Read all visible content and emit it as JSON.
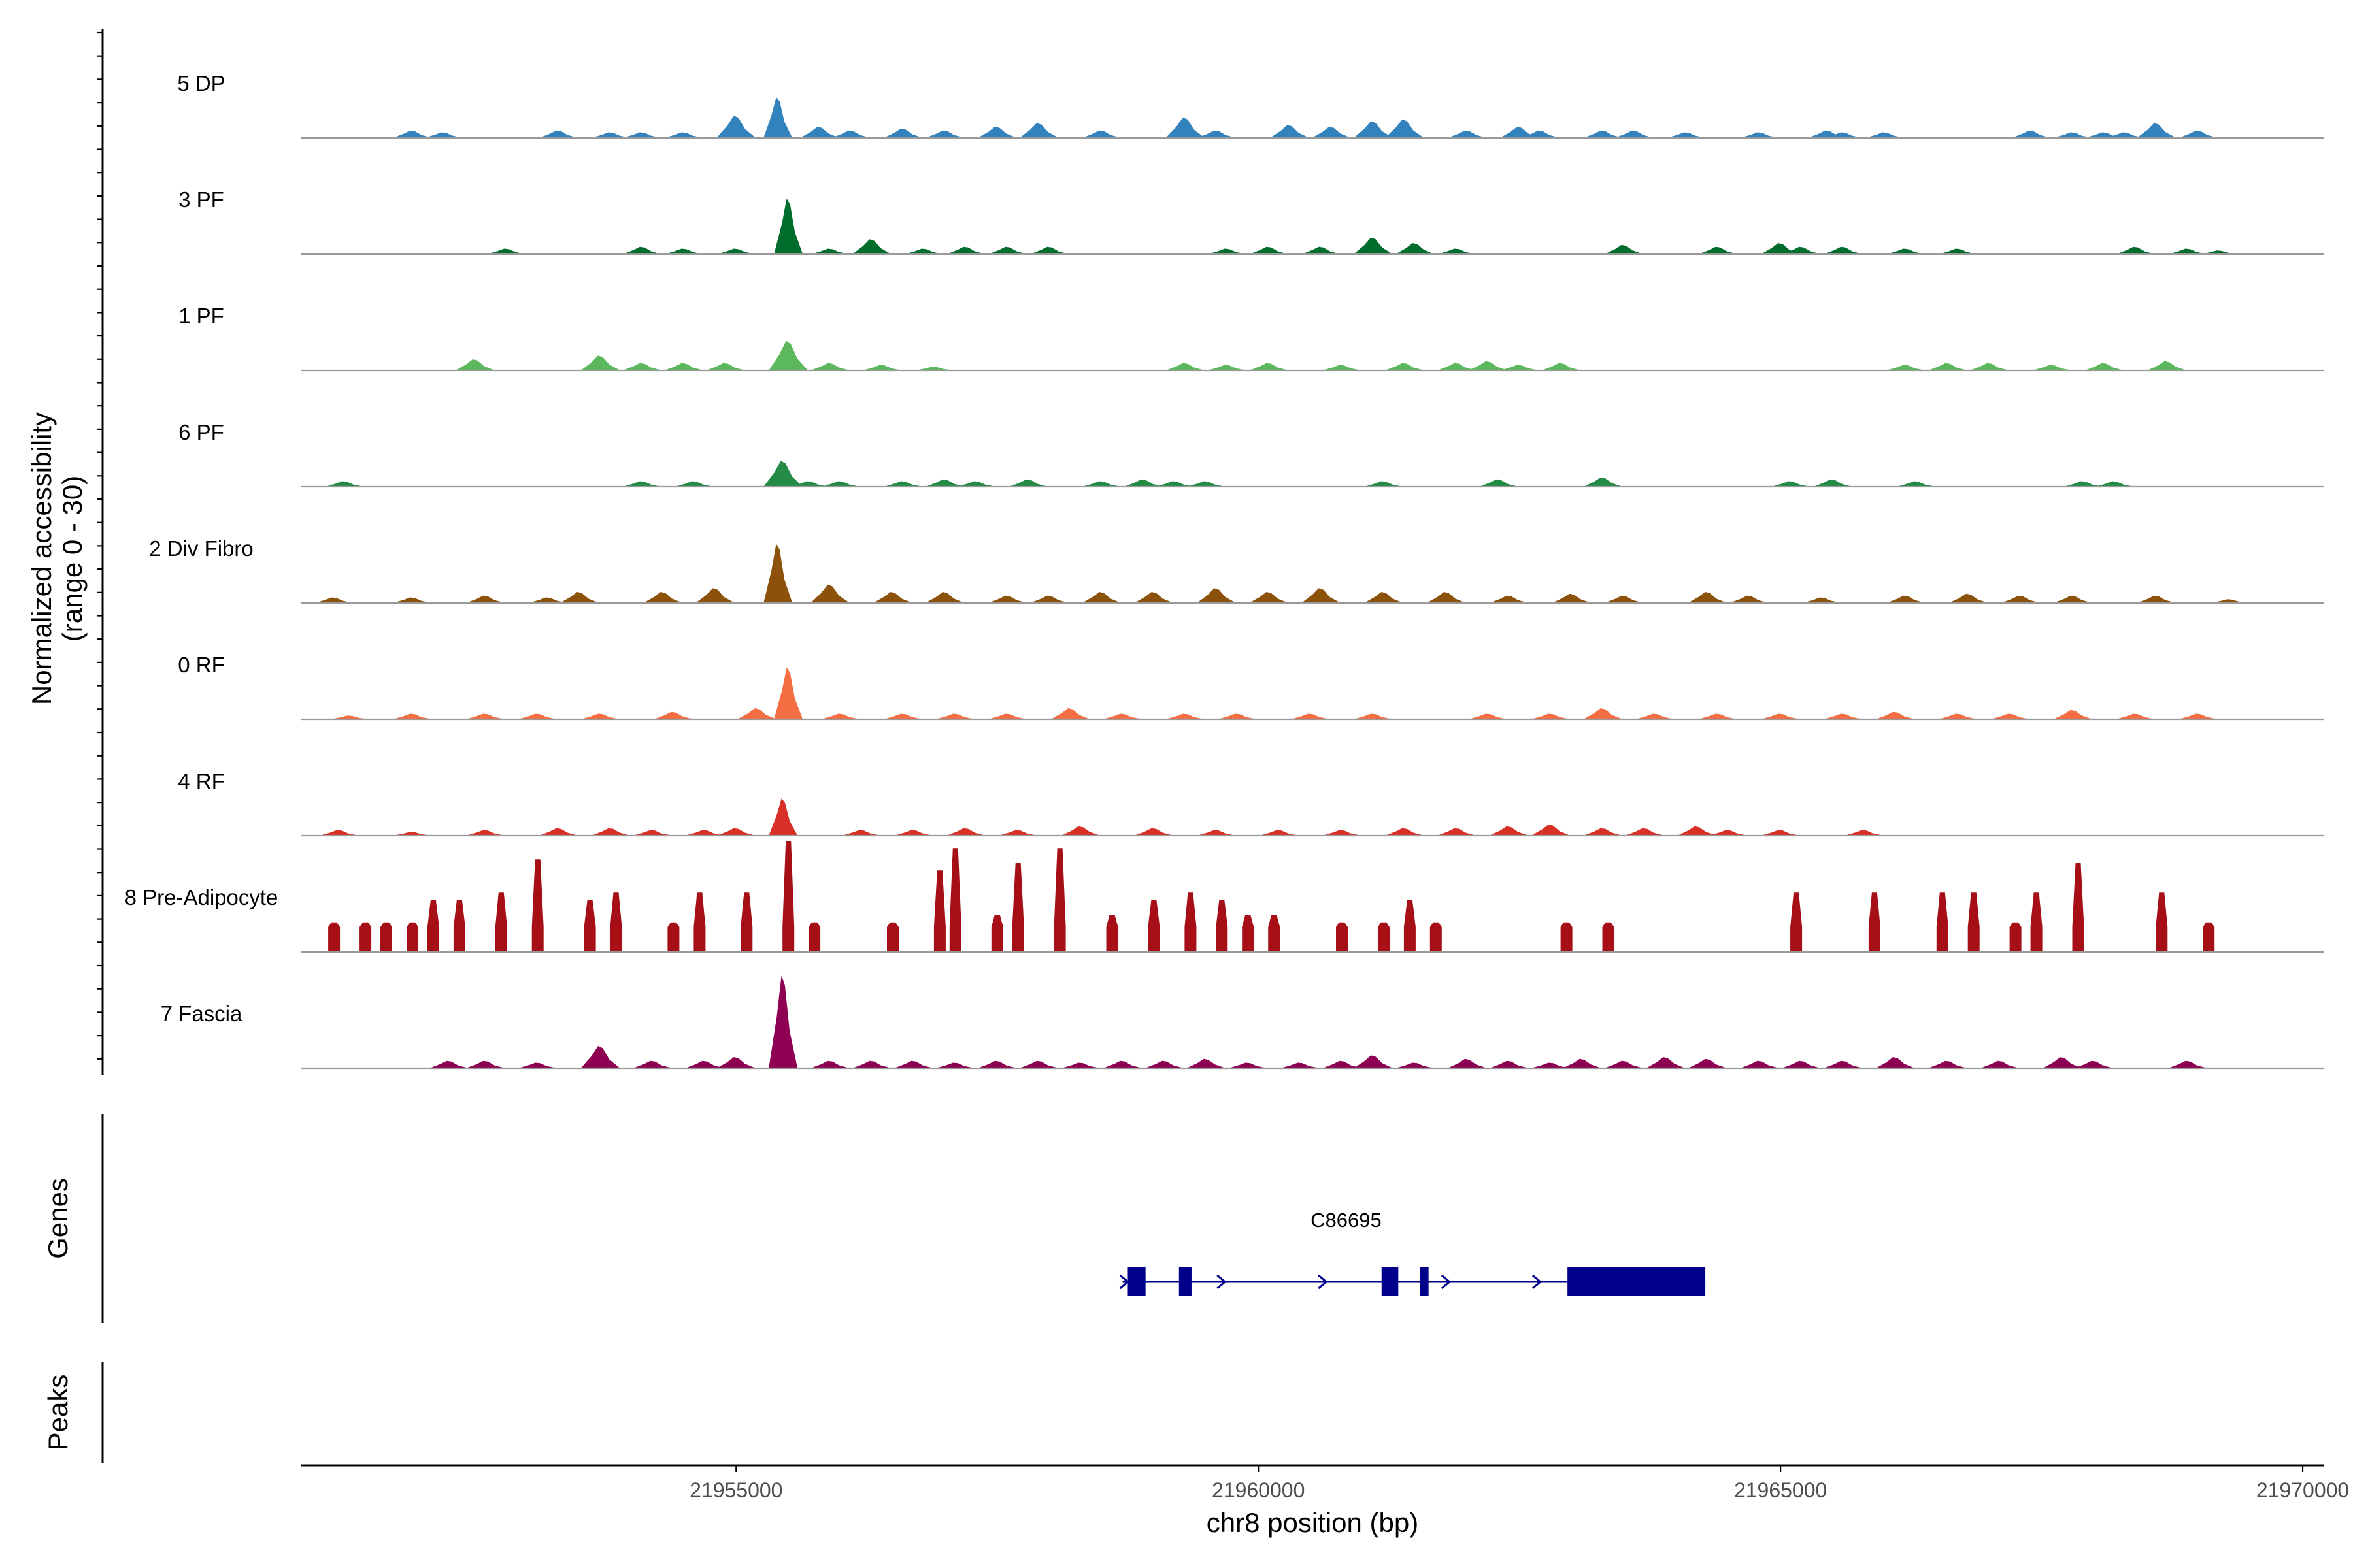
{
  "chart_data": {
    "type": "area",
    "chromosome": "chr8",
    "y_axis_title_line1": "Normalized accessibility",
    "y_axis_title_line2": "(range 0 - 30)",
    "ylim": [
      0,
      30
    ],
    "x_axis_title": "chr8 position (bp)",
    "xlim": [
      21950830,
      21970200
    ],
    "x_ticks": [
      21955000,
      21960000,
      21965000,
      21970000
    ],
    "x_tick_labels": [
      "21955000",
      "21960000",
      "21965000",
      "21970000"
    ],
    "tracks": [
      {
        "label": "5 DP",
        "color": "#3182bd",
        "max": 11,
        "peaks": [
          [
            21951900,
            2
          ],
          [
            21952200,
            1.5
          ],
          [
            21953300,
            2
          ],
          [
            21953800,
            1.5
          ],
          [
            21954100,
            1.5
          ],
          [
            21954500,
            1.5
          ],
          [
            21955000,
            6
          ],
          [
            21955400,
            11
          ],
          [
            21955800,
            3
          ],
          [
            21956100,
            2
          ],
          [
            21956600,
            2.5
          ],
          [
            21957000,
            2
          ],
          [
            21957500,
            3
          ],
          [
            21957900,
            4
          ],
          [
            21958500,
            2
          ],
          [
            21959300,
            5.5
          ],
          [
            21959600,
            2
          ],
          [
            21960300,
            3.5
          ],
          [
            21960700,
            3
          ],
          [
            21961100,
            4.5
          ],
          [
            21961400,
            5
          ],
          [
            21962000,
            2
          ],
          [
            21962500,
            3
          ],
          [
            21962700,
            2
          ],
          [
            21963300,
            2
          ],
          [
            21963600,
            2
          ],
          [
            21964100,
            1.5
          ],
          [
            21964800,
            1.5
          ],
          [
            21965450,
            2
          ],
          [
            21965600,
            1.5
          ],
          [
            21966000,
            1.5
          ],
          [
            21967400,
            2
          ],
          [
            21967800,
            1.5
          ],
          [
            21968100,
            1.5
          ],
          [
            21968300,
            1.5
          ],
          [
            21968600,
            4
          ],
          [
            21969000,
            2
          ]
        ]
      },
      {
        "label": "3 PF",
        "color": "#006d2c",
        "max": 15,
        "peaks": [
          [
            21952800,
            1.5
          ],
          [
            21954100,
            2
          ],
          [
            21954500,
            1.5
          ],
          [
            21955000,
            1.5
          ],
          [
            21955500,
            15
          ],
          [
            21955900,
            1.5
          ],
          [
            21956300,
            4
          ],
          [
            21956800,
            1.5
          ],
          [
            21957200,
            2
          ],
          [
            21957600,
            2
          ],
          [
            21958000,
            2
          ],
          [
            21959700,
            1.5
          ],
          [
            21960100,
            2
          ],
          [
            21960600,
            2
          ],
          [
            21961100,
            4.5
          ],
          [
            21961500,
            3
          ],
          [
            21961900,
            1.5
          ],
          [
            21963500,
            2.5
          ],
          [
            21964400,
            2
          ],
          [
            21965000,
            3
          ],
          [
            21965200,
            2
          ],
          [
            21965600,
            2
          ],
          [
            21966200,
            1.5
          ],
          [
            21966700,
            1.5
          ],
          [
            21968400,
            2
          ],
          [
            21968900,
            1.5
          ],
          [
            21969200,
            1
          ]
        ]
      },
      {
        "label": "1 PF",
        "color": "#5cb85c",
        "max": 8,
        "peaks": [
          [
            21952500,
            3
          ],
          [
            21953700,
            4
          ],
          [
            21954100,
            2
          ],
          [
            21954500,
            2
          ],
          [
            21954900,
            2
          ],
          [
            21955500,
            8
          ],
          [
            21955900,
            2
          ],
          [
            21956400,
            1.5
          ],
          [
            21956900,
            1
          ],
          [
            21959300,
            2
          ],
          [
            21959700,
            1.5
          ],
          [
            21960100,
            2
          ],
          [
            21960800,
            1.5
          ],
          [
            21961400,
            2
          ],
          [
            21961900,
            2
          ],
          [
            21962200,
            2.5
          ],
          [
            21962500,
            1.5
          ],
          [
            21962900,
            2
          ],
          [
            21966200,
            1.5
          ],
          [
            21966600,
            2
          ],
          [
            21967000,
            2
          ],
          [
            21967600,
            1.5
          ],
          [
            21968100,
            2
          ],
          [
            21968700,
            2.5
          ]
        ]
      },
      {
        "label": "6 PF",
        "color": "#238b45",
        "max": 7,
        "peaks": [
          [
            21951250,
            1.5
          ],
          [
            21954100,
            1.5
          ],
          [
            21954600,
            1.5
          ],
          [
            21955450,
            7
          ],
          [
            21955700,
            1.5
          ],
          [
            21956000,
            1.5
          ],
          [
            21956600,
            1.5
          ],
          [
            21957000,
            2
          ],
          [
            21957300,
            1.5
          ],
          [
            21957800,
            2
          ],
          [
            21958500,
            1.5
          ],
          [
            21958900,
            2
          ],
          [
            21959200,
            1.5
          ],
          [
            21959500,
            1.5
          ],
          [
            21961200,
            1.5
          ],
          [
            21962300,
            2
          ],
          [
            21963300,
            2.5
          ],
          [
            21965100,
            1.5
          ],
          [
            21965500,
            2
          ],
          [
            21966300,
            1.5
          ],
          [
            21967900,
            1.5
          ],
          [
            21968200,
            1.5
          ]
        ]
      },
      {
        "label": "2 Div Fibro",
        "color": "#8c510a",
        "max": 16,
        "peaks": [
          [
            21951150,
            1.5
          ],
          [
            21951900,
            1.5
          ],
          [
            21952600,
            2
          ],
          [
            21953200,
            1.5
          ],
          [
            21953500,
            3
          ],
          [
            21954300,
            3
          ],
          [
            21954800,
            4
          ],
          [
            21955400,
            16
          ],
          [
            21955900,
            5
          ],
          [
            21956500,
            3
          ],
          [
            21957000,
            3
          ],
          [
            21957600,
            2
          ],
          [
            21958000,
            2
          ],
          [
            21958500,
            3
          ],
          [
            21959000,
            3
          ],
          [
            21959600,
            4
          ],
          [
            21960100,
            3
          ],
          [
            21960600,
            4
          ],
          [
            21961200,
            3
          ],
          [
            21961800,
            3
          ],
          [
            21962400,
            2
          ],
          [
            21963000,
            2.5
          ],
          [
            21963500,
            2
          ],
          [
            21964300,
            3
          ],
          [
            21964700,
            2
          ],
          [
            21965400,
            1.5
          ],
          [
            21966200,
            2
          ],
          [
            21966800,
            2.5
          ],
          [
            21967300,
            2
          ],
          [
            21967800,
            2
          ],
          [
            21968600,
            2
          ],
          [
            21969300,
            1
          ]
        ]
      },
      {
        "label": "0 RF",
        "color": "#f46d43",
        "max": 14,
        "peaks": [
          [
            21951300,
            1
          ],
          [
            21951900,
            1.5
          ],
          [
            21952600,
            1.5
          ],
          [
            21953100,
            1.5
          ],
          [
            21953700,
            1.5
          ],
          [
            21954400,
            2
          ],
          [
            21955200,
            3
          ],
          [
            21955500,
            14
          ],
          [
            21956000,
            1.5
          ],
          [
            21956600,
            1.5
          ],
          [
            21957100,
            1.5
          ],
          [
            21957600,
            1.5
          ],
          [
            21958200,
            3
          ],
          [
            21958700,
            1.5
          ],
          [
            21959300,
            1.5
          ],
          [
            21959800,
            1.5
          ],
          [
            21960500,
            1.5
          ],
          [
            21961100,
            1.5
          ],
          [
            21962200,
            1.5
          ],
          [
            21962800,
            1.5
          ],
          [
            21963300,
            3
          ],
          [
            21963800,
            1.5
          ],
          [
            21964400,
            1.5
          ],
          [
            21965000,
            1.5
          ],
          [
            21965600,
            1.5
          ],
          [
            21966100,
            2
          ],
          [
            21966700,
            1.5
          ],
          [
            21967200,
            1.5
          ],
          [
            21967800,
            2.5
          ],
          [
            21968400,
            1.5
          ],
          [
            21969000,
            1.5
          ]
        ]
      },
      {
        "label": "4 RF",
        "color": "#d73027",
        "max": 10,
        "peaks": [
          [
            21951200,
            1.5
          ],
          [
            21951900,
            1
          ],
          [
            21952600,
            1.5
          ],
          [
            21953300,
            2
          ],
          [
            21953800,
            2
          ],
          [
            21954200,
            1.5
          ],
          [
            21954700,
            1.5
          ],
          [
            21955000,
            2
          ],
          [
            21955450,
            10
          ],
          [
            21956200,
            1.5
          ],
          [
            21956700,
            1.5
          ],
          [
            21957200,
            2
          ],
          [
            21957700,
            1.5
          ],
          [
            21958300,
            2.5
          ],
          [
            21959000,
            2
          ],
          [
            21959600,
            1.5
          ],
          [
            21960200,
            1.5
          ],
          [
            21960800,
            1.5
          ],
          [
            21961400,
            2
          ],
          [
            21961900,
            2
          ],
          [
            21962400,
            2.5
          ],
          [
            21962800,
            3
          ],
          [
            21963300,
            2
          ],
          [
            21963700,
            2
          ],
          [
            21964200,
            2.5
          ],
          [
            21964500,
            1.5
          ],
          [
            21965000,
            1.5
          ],
          [
            21965800,
            1.5
          ]
        ]
      },
      {
        "label": "8 Pre-Adipocyte",
        "color": "#a50f15",
        "max": 30,
        "peaks": [
          [
            21951150,
            8
          ],
          [
            21951450,
            8
          ],
          [
            21951650,
            8
          ],
          [
            21951900,
            8
          ],
          [
            21952100,
            14
          ],
          [
            21952350,
            14
          ],
          [
            21952750,
            16
          ],
          [
            21953100,
            25
          ],
          [
            21953600,
            14
          ],
          [
            21953850,
            16
          ],
          [
            21954400,
            8
          ],
          [
            21954650,
            16
          ],
          [
            21955100,
            16
          ],
          [
            21955500,
            30
          ],
          [
            21955750,
            8
          ],
          [
            21956500,
            8
          ],
          [
            21956950,
            22
          ],
          [
            21957100,
            28
          ],
          [
            21957500,
            10
          ],
          [
            21957700,
            24
          ],
          [
            21958100,
            28
          ],
          [
            21958600,
            10
          ],
          [
            21959000,
            14
          ],
          [
            21959350,
            16
          ],
          [
            21959650,
            14
          ],
          [
            21959900,
            10
          ],
          [
            21960150,
            10
          ],
          [
            21960800,
            8
          ],
          [
            21961200,
            8
          ],
          [
            21961450,
            14
          ],
          [
            21961700,
            8
          ],
          [
            21962950,
            8
          ],
          [
            21963350,
            8
          ],
          [
            21965150,
            16
          ],
          [
            21965900,
            16
          ],
          [
            21966550,
            16
          ],
          [
            21966850,
            16
          ],
          [
            21967250,
            8
          ],
          [
            21967450,
            16
          ],
          [
            21967850,
            24
          ],
          [
            21968650,
            16
          ],
          [
            21969100,
            8
          ]
        ]
      },
      {
        "label": "7 Fascia",
        "color": "#8e0152",
        "max": 25,
        "peaks": [
          [
            21952250,
            2
          ],
          [
            21952600,
            2
          ],
          [
            21953100,
            1.5
          ],
          [
            21953700,
            6
          ],
          [
            21954200,
            2
          ],
          [
            21954700,
            2
          ],
          [
            21955000,
            3
          ],
          [
            21955450,
            25
          ],
          [
            21955900,
            2
          ],
          [
            21956300,
            2
          ],
          [
            21956700,
            2
          ],
          [
            21957100,
            1.5
          ],
          [
            21957500,
            2
          ],
          [
            21957900,
            2
          ],
          [
            21958300,
            1.5
          ],
          [
            21958700,
            2
          ],
          [
            21959100,
            2
          ],
          [
            21959500,
            2.5
          ],
          [
            21959900,
            1.5
          ],
          [
            21960400,
            1.5
          ],
          [
            21960800,
            2
          ],
          [
            21961100,
            3.5
          ],
          [
            21961500,
            1.5
          ],
          [
            21962000,
            2.5
          ],
          [
            21962400,
            2
          ],
          [
            21962800,
            1.5
          ],
          [
            21963100,
            2.5
          ],
          [
            21963500,
            2
          ],
          [
            21963900,
            3
          ],
          [
            21964300,
            2.5
          ],
          [
            21964800,
            2
          ],
          [
            21965200,
            2
          ],
          [
            21965600,
            2
          ],
          [
            21966100,
            3
          ],
          [
            21966600,
            2
          ],
          [
            21967100,
            2
          ],
          [
            21967700,
            3
          ],
          [
            21968000,
            2
          ],
          [
            21968900,
            2
          ]
        ]
      }
    ],
    "genes_panel_label": "Genes",
    "peaks_panel_label": "Peaks",
    "gene": {
      "name": "C86695",
      "color": "#00008b",
      "start": 21958700,
      "end": 21964280,
      "strand": "+",
      "exons": [
        [
          21958750,
          21958920
        ],
        [
          21959240,
          21959360
        ],
        [
          21961180,
          21961340
        ],
        [
          21961550,
          21961630
        ],
        [
          21962960,
          21964280
        ]
      ]
    }
  }
}
